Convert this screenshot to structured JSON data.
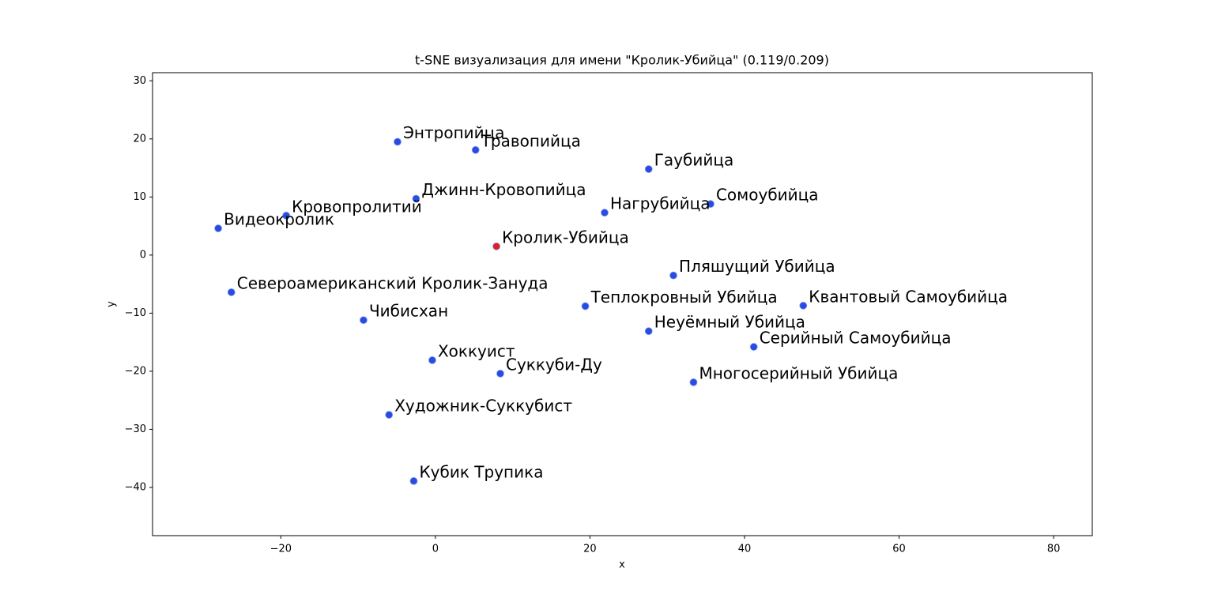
{
  "chart_data": {
    "type": "scatter",
    "title": "t-SNE визуализация для имени \"Кролик-Убийца\" (0.119/0.209)",
    "xlabel": "x",
    "ylabel": "y",
    "xlim": [
      -36.6,
      85.0
    ],
    "ylim": [
      -48.3,
      31.4
    ],
    "xticks": [
      {
        "value": -20,
        "label": "−20"
      },
      0,
      20,
      40,
      60,
      80
    ],
    "yticks": [
      {
        "value": -40,
        "label": "−40"
      },
      {
        "value": -30,
        "label": "−30"
      },
      {
        "value": -20,
        "label": "−20"
      },
      {
        "value": -10,
        "label": "−10"
      },
      0,
      10,
      20,
      30
    ],
    "points": [
      {
        "label": "Энтропийца",
        "x": -4.9,
        "y": 19.5,
        "color": "#2a4be0",
        "label_color": "#0000ff"
      },
      {
        "label": "Травопийца",
        "x": 5.2,
        "y": 18.1,
        "color": "#2a4be0",
        "label_color": "#0000ff"
      },
      {
        "label": "Гаубийца",
        "x": 27.6,
        "y": 14.8,
        "color": "#2a4be0",
        "label_color": "#0000ff"
      },
      {
        "label": "Джинн-Кровопийца",
        "x": -2.5,
        "y": 9.7,
        "color": "#2a4be0",
        "label_color": "#0000ff"
      },
      {
        "label": "Сомоубийца",
        "x": 35.6,
        "y": 8.8,
        "color": "#2a4be0",
        "label_color": "#0000ff"
      },
      {
        "label": "Нагрубийца",
        "x": 21.9,
        "y": 7.3,
        "color": "#2a4be0",
        "label_color": "#0000ff"
      },
      {
        "label": "Кровопролитий",
        "x": -19.3,
        "y": 6.8,
        "color": "#2a4be0",
        "label_color": "#0000ff"
      },
      {
        "label": "Видеокролик",
        "x": -28.1,
        "y": 4.6,
        "color": "#2a4be0",
        "label_color": "#0000ff"
      },
      {
        "label": "Кролик-Убийца",
        "x": 7.9,
        "y": 1.5,
        "color": "#e0211d",
        "label_color": "#ff0000"
      },
      {
        "label": "Пляшущий Убийца",
        "x": 30.8,
        "y": -3.5,
        "color": "#2a4be0",
        "label_color": "#0000ff"
      },
      {
        "label": "Североамериканский Кролик-Зануда",
        "x": -26.4,
        "y": -6.4,
        "color": "#2a4be0",
        "label_color": "#0000ff"
      },
      {
        "label": "Теплокровный Убийца",
        "x": 19.4,
        "y": -8.8,
        "color": "#2a4be0",
        "label_color": "#0000ff"
      },
      {
        "label": "Квантовый Самоубийца",
        "x": 47.6,
        "y": -8.7,
        "color": "#2a4be0",
        "label_color": "#0000ff"
      },
      {
        "label": "Чибисхан",
        "x": -9.3,
        "y": -11.2,
        "color": "#2a4be0",
        "label_color": "#0000ff"
      },
      {
        "label": "Неуёмный Убийца",
        "x": 27.6,
        "y": -13.1,
        "color": "#2a4be0",
        "label_color": "#0000ff"
      },
      {
        "label": "Серийный Самоубийца",
        "x": 41.2,
        "y": -15.8,
        "color": "#2a4be0",
        "label_color": "#0000ff"
      },
      {
        "label": "Хоккуист",
        "x": -0.4,
        "y": -18.1,
        "color": "#2a4be0",
        "label_color": "#0000ff"
      },
      {
        "label": "Суккуби-Ду",
        "x": 8.4,
        "y": -20.4,
        "color": "#2a4be0",
        "label_color": "#0000ff"
      },
      {
        "label": "Многосерийный Убийца",
        "x": 33.4,
        "y": -21.9,
        "color": "#2a4be0",
        "label_color": "#0000ff"
      },
      {
        "label": "Художник-Суккубист",
        "x": -6.0,
        "y": -27.5,
        "color": "#2a4be0",
        "label_color": "#0000ff"
      },
      {
        "label": "Кубик Трупика",
        "x": -2.8,
        "y": -38.9,
        "color": "#2a4be0",
        "label_color": "#0000ff"
      }
    ]
  }
}
